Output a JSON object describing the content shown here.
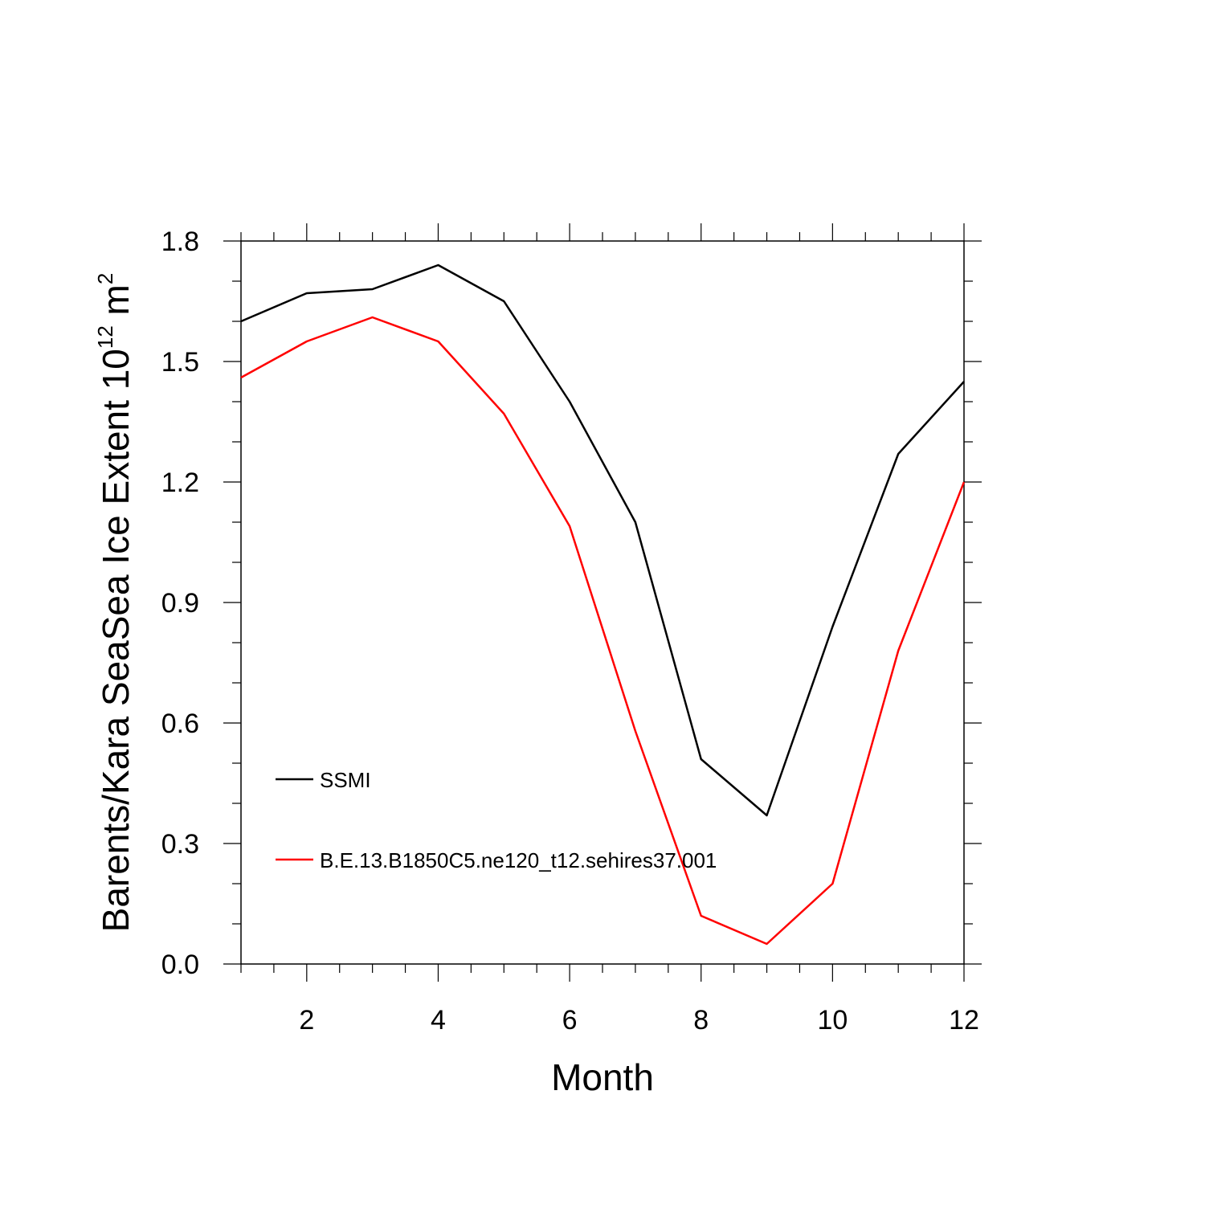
{
  "chart_data": {
    "type": "line",
    "xlabel": "Month",
    "ylabel": "Barents/Kara SeaSea Ice Extent 10",
    "ylabel_exponent": "12",
    "ylabel_unit": " m",
    "ylabel_unit_exponent": "2",
    "xlim": [
      1,
      12
    ],
    "ylim": [
      0.0,
      1.8
    ],
    "x_ticks": [
      2,
      4,
      6,
      8,
      10,
      12
    ],
    "x_tick_labels": [
      "2",
      "4",
      "6",
      "8",
      "10",
      "12"
    ],
    "y_ticks": [
      0.0,
      0.3,
      0.6,
      0.9,
      1.2,
      1.5,
      1.8
    ],
    "y_tick_labels": [
      "0.0",
      "0.3",
      "0.6",
      "0.9",
      "1.2",
      "1.5",
      "1.8"
    ],
    "grid": false,
    "legend_position": "lower-left",
    "x": [
      1,
      2,
      3,
      4,
      5,
      6,
      7,
      8,
      9,
      10,
      11,
      12
    ],
    "series": [
      {
        "name": "SSMI",
        "color": "#000000",
        "values": [
          1.6,
          1.67,
          1.68,
          1.74,
          1.65,
          1.4,
          1.1,
          0.51,
          0.37,
          0.84,
          1.27,
          1.45
        ]
      },
      {
        "name": "B.E.13.B1850C5.ne120_t12.sehires37.001",
        "color": "#ff0000",
        "values": [
          1.46,
          1.55,
          1.61,
          1.55,
          1.37,
          1.09,
          0.58,
          0.12,
          0.05,
          0.2,
          0.78,
          1.2
        ]
      }
    ]
  }
}
